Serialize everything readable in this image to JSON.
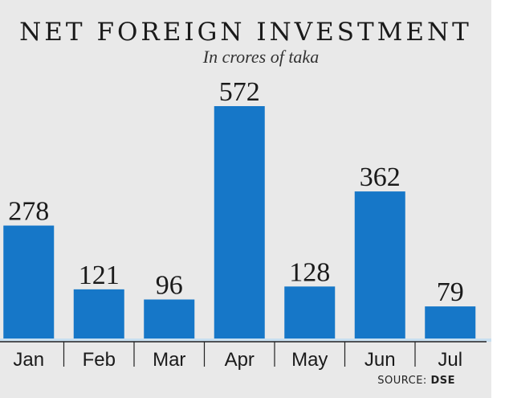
{
  "title": "NET FOREIGN INVESTMENT",
  "subtitle": "In crores of taka",
  "source": {
    "label": "SOURCE:",
    "name": "DSE"
  },
  "chart_data": {
    "type": "bar",
    "title": "NET FOREIGN INVESTMENT",
    "subtitle": "In crores of taka",
    "categories": [
      "Jan",
      "Feb",
      "Mar",
      "Apr",
      "May",
      "Jun",
      "Jul"
    ],
    "values": [
      278,
      121,
      96,
      572,
      128,
      362,
      79
    ],
    "xlabel": "",
    "ylabel": "",
    "ylim": [
      0,
      572
    ],
    "grid": false,
    "legend": "none",
    "bar_color": "#1677c8",
    "data_labels": true
  }
}
